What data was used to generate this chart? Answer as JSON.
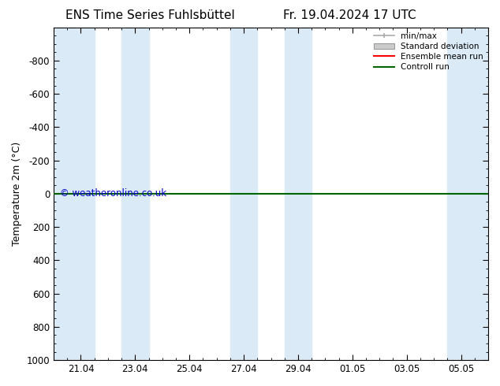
{
  "title_left": "ENS Time Series Fuhlsbüttel",
  "title_right": "Fr. 19.04.2024 17 UTC",
  "ylabel": "Temperature 2m (°C)",
  "watermark": "© weatheronline.co.uk",
  "watermark_color": "#0000cc",
  "ylim_top": -1000,
  "ylim_bottom": 1000,
  "yticks": [
    -800,
    -600,
    -400,
    -200,
    0,
    200,
    400,
    600,
    800,
    1000
  ],
  "band_color": "#daeaf6",
  "bands_x": [
    [
      0,
      1.5
    ],
    [
      2.5,
      3.5
    ],
    [
      6.5,
      7.5
    ],
    [
      8.5,
      9.5
    ],
    [
      14.5,
      16.0
    ]
  ],
  "xtick_positions": [
    1,
    3,
    5,
    7,
    9,
    11,
    13,
    15
  ],
  "xtick_labels": [
    "21.04",
    "23.04",
    "25.04",
    "27.04",
    "29.04",
    "01.05",
    "03.05",
    "05.05"
  ],
  "xlim": [
    0,
    16.0
  ],
  "control_run_y": 0,
  "control_run_color": "#006400",
  "ensemble_mean_color": "#ff0000",
  "background_color": "#ffffff",
  "border_color": "#000000",
  "title_fontsize": 11,
  "axis_fontsize": 9,
  "tick_fontsize": 8.5
}
